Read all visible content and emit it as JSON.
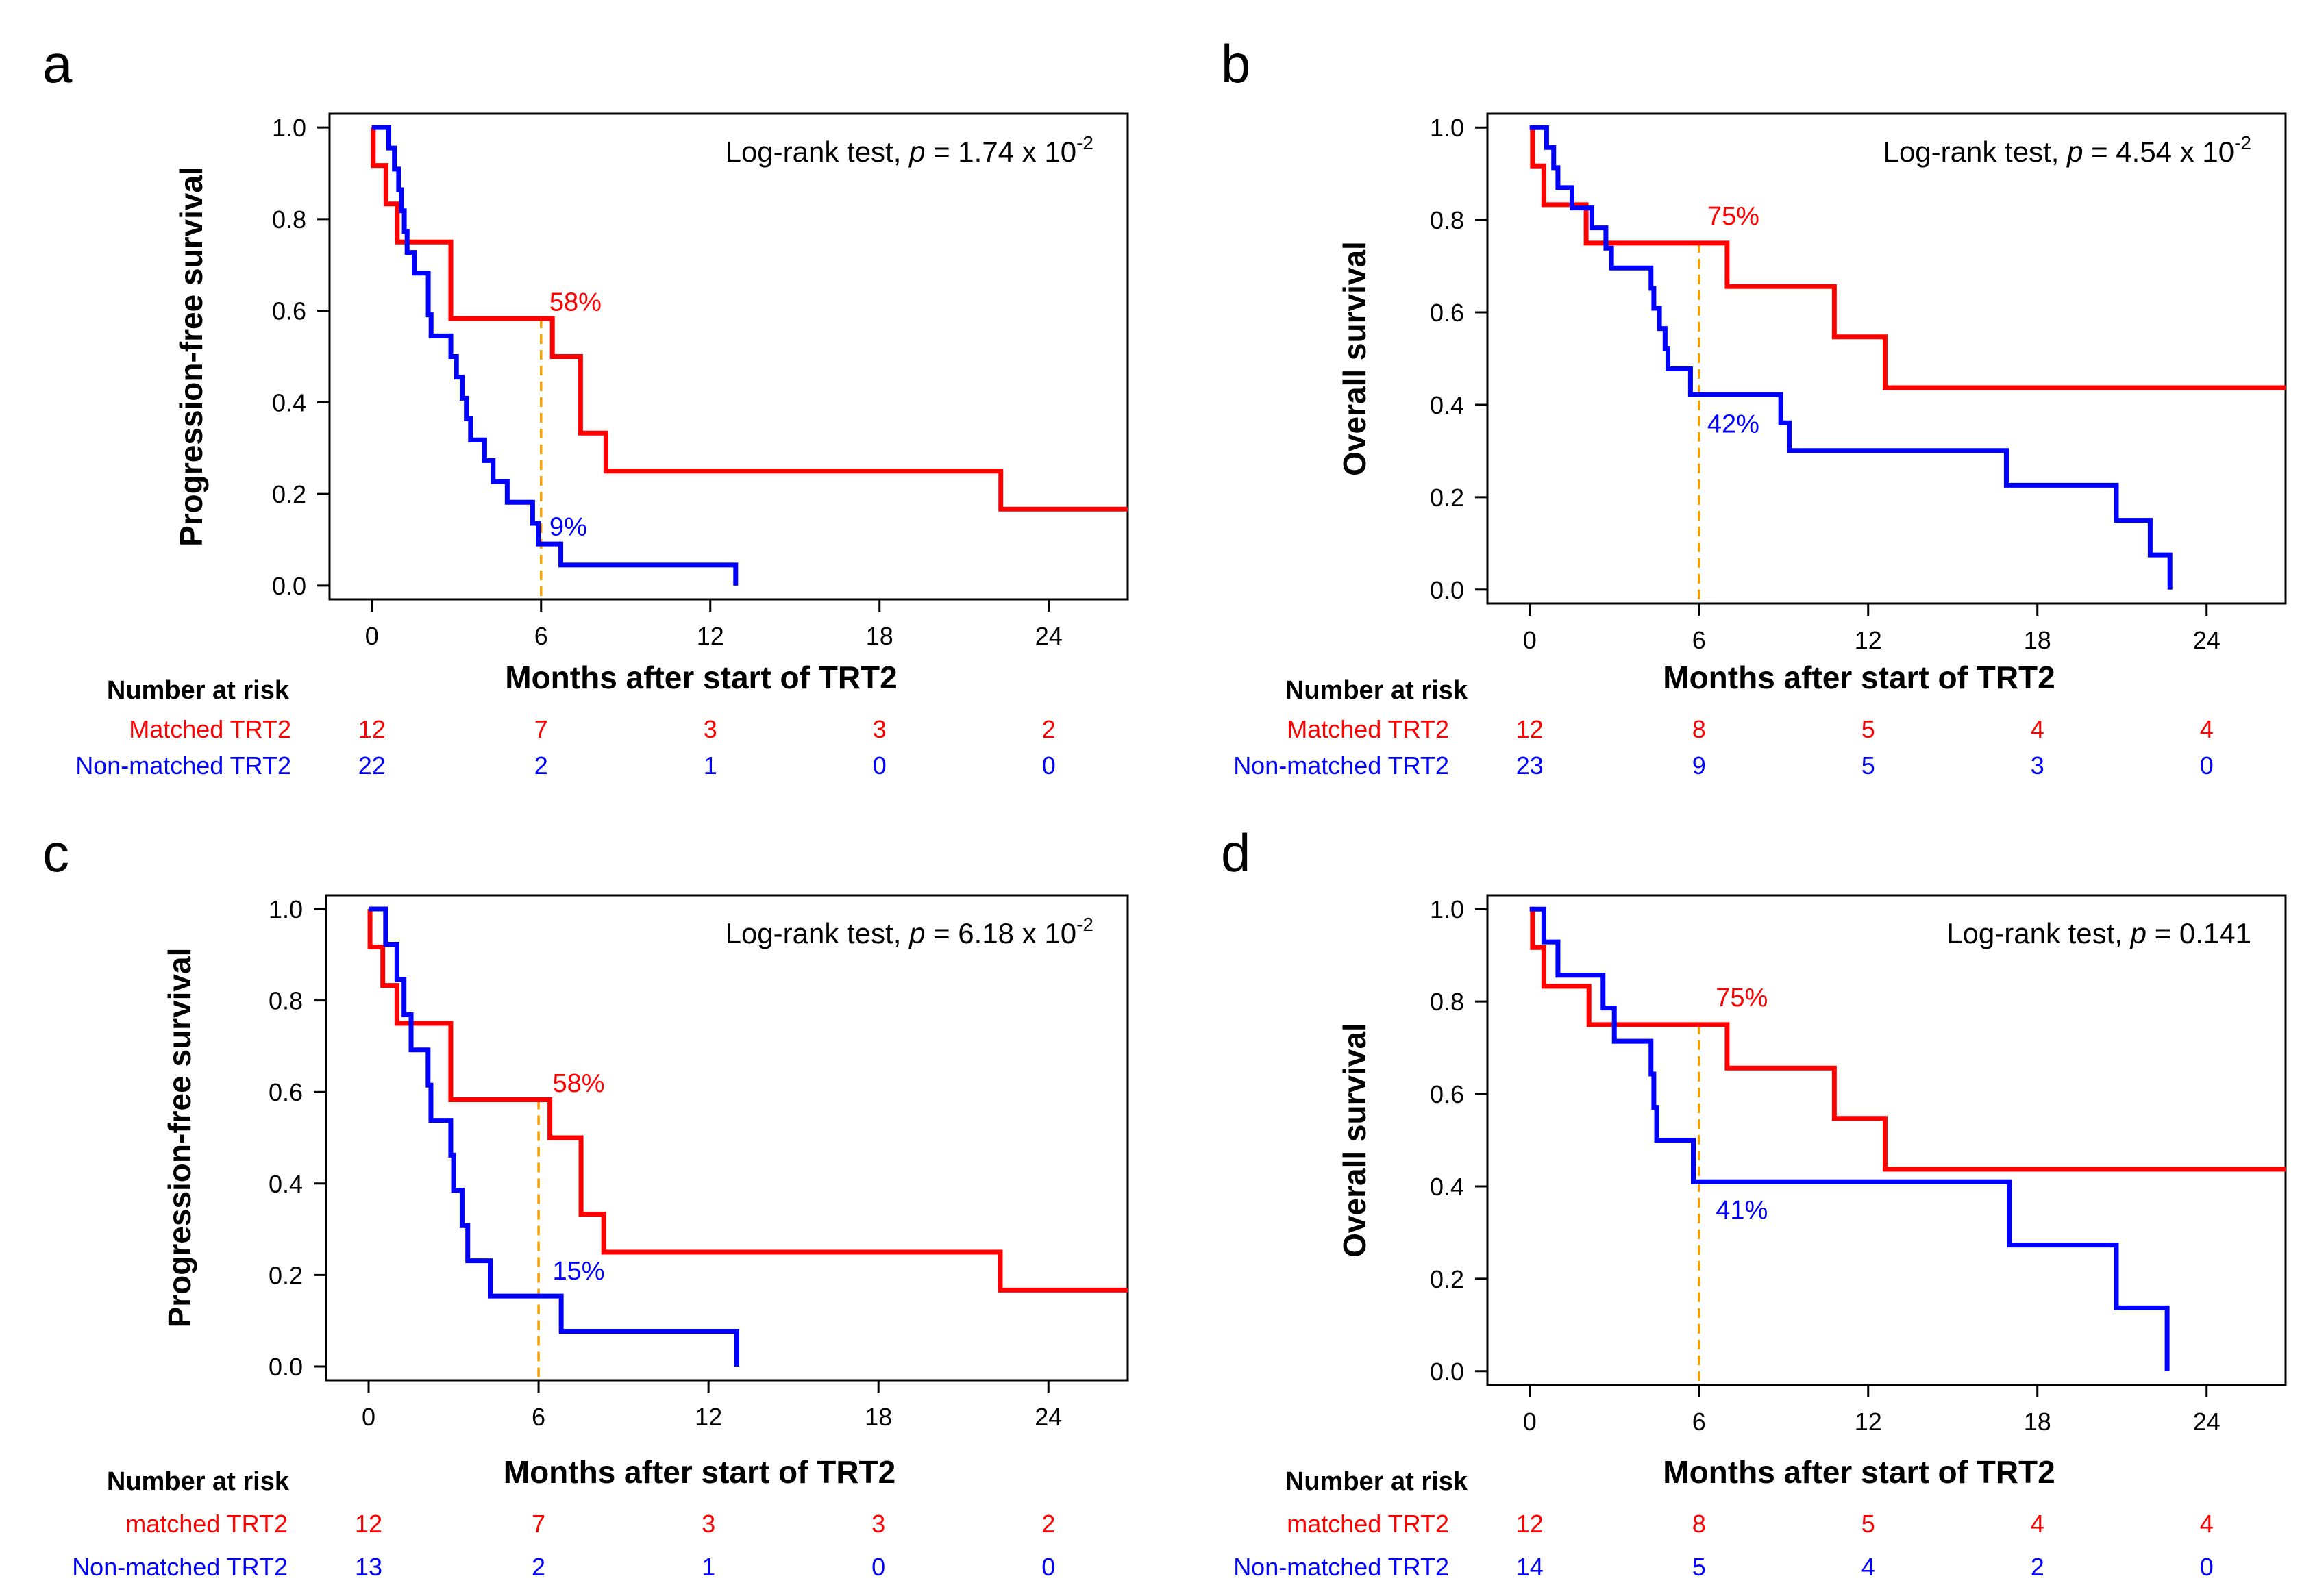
{
  "figure": {
    "colors": {
      "matched": "#ff0000",
      "nonmatched": "#0000ff",
      "marker": "#f5a000",
      "axis": "#000000"
    },
    "tick_x": [
      "0",
      "6",
      "12",
      "18",
      "24"
    ],
    "tick_y": [
      "0.0",
      "0.2",
      "0.4",
      "0.6",
      "0.8",
      "1.0"
    ]
  },
  "chart_data": [
    {
      "type": "line",
      "panel_label": "a",
      "ylabel": "Progression-free survival",
      "xlabel": "Months after start of TRT2",
      "xlim": [
        -1.5,
        26.8
      ],
      "ylim": [
        -0.03,
        1.03
      ],
      "test_label": "Log-rank test, ",
      "test_p_symbol": "p",
      "test_p_value": " = 1.74 x 10",
      "test_p_exp": "-2",
      "marker_x": 6,
      "risk_header": "Number at risk",
      "series": [
        {
          "name": "Matched TRT2",
          "color": "#ff0000",
          "annotation": "58%",
          "annotation_at": [
            6.1,
            0.6
          ],
          "risk": [
            "12",
            "7",
            "3",
            "3",
            "2"
          ],
          "points": [
            [
              0,
              1.0
            ],
            [
              0.05,
              0.917
            ],
            [
              0.5,
              0.833
            ],
            [
              0.9,
              0.75
            ],
            [
              2.8,
              0.583
            ],
            [
              6.4,
              0.5
            ],
            [
              7.4,
              0.333
            ],
            [
              8.3,
              0.25
            ],
            [
              22.3,
              0.167
            ],
            [
              26.8,
              0.167
            ]
          ]
        },
        {
          "name": "Non-matched TRT2",
          "color": "#0000ff",
          "annotation": "9%",
          "annotation_at": [
            6.1,
            0.11
          ],
          "risk": [
            "22",
            "2",
            "1",
            "0",
            "0"
          ],
          "points": [
            [
              0,
              1.0
            ],
            [
              0.6,
              0.955
            ],
            [
              0.8,
              0.909
            ],
            [
              0.95,
              0.864
            ],
            [
              1.05,
              0.818
            ],
            [
              1.15,
              0.773
            ],
            [
              1.25,
              0.727
            ],
            [
              1.5,
              0.682
            ],
            [
              2.0,
              0.591
            ],
            [
              2.1,
              0.545
            ],
            [
              2.8,
              0.5
            ],
            [
              3.0,
              0.455
            ],
            [
              3.2,
              0.409
            ],
            [
              3.35,
              0.364
            ],
            [
              3.5,
              0.318
            ],
            [
              4.0,
              0.273
            ],
            [
              4.3,
              0.227
            ],
            [
              4.8,
              0.182
            ],
            [
              5.7,
              0.136
            ],
            [
              5.9,
              0.091
            ],
            [
              6.7,
              0.045
            ],
            [
              12.9,
              0.045
            ],
            [
              12.9,
              0.0
            ]
          ]
        }
      ]
    },
    {
      "type": "line",
      "panel_label": "b",
      "ylabel": "Overall survival",
      "xlabel": "Months after start of TRT2",
      "xlim": [
        -1.5,
        26.8
      ],
      "ylim": [
        -0.03,
        1.03
      ],
      "test_label": "Log-rank test, ",
      "test_p_symbol": "p",
      "test_p_value": " = 4.54 x 10",
      "test_p_exp": "-2",
      "marker_x": 6,
      "risk_header": "Number at risk",
      "series": [
        {
          "name": "Matched TRT2",
          "color": "#ff0000",
          "annotation": "75%",
          "annotation_at": [
            6.1,
            0.79
          ],
          "risk": [
            "12",
            "8",
            "5",
            "4",
            "4"
          ],
          "points": [
            [
              0,
              1.0
            ],
            [
              0.1,
              0.917
            ],
            [
              0.5,
              0.833
            ],
            [
              2.0,
              0.75
            ],
            [
              7.0,
              0.656
            ],
            [
              10.8,
              0.547
            ],
            [
              12.6,
              0.437
            ],
            [
              26.8,
              0.437
            ]
          ]
        },
        {
          "name": "Non-matched TRT2",
          "color": "#0000ff",
          "annotation": "42%",
          "annotation_at": [
            6.1,
            0.34
          ],
          "risk": [
            "23",
            "9",
            "5",
            "3",
            "0"
          ],
          "points": [
            [
              0,
              1.0
            ],
            [
              0.6,
              0.957
            ],
            [
              0.85,
              0.913
            ],
            [
              1.0,
              0.87
            ],
            [
              1.5,
              0.826
            ],
            [
              2.2,
              0.783
            ],
            [
              2.7,
              0.739
            ],
            [
              2.9,
              0.696
            ],
            [
              4.3,
              0.652
            ],
            [
              4.4,
              0.609
            ],
            [
              4.6,
              0.565
            ],
            [
              4.8,
              0.522
            ],
            [
              4.9,
              0.478
            ],
            [
              5.7,
              0.422
            ],
            [
              8.9,
              0.361
            ],
            [
              9.2,
              0.301
            ],
            [
              16.9,
              0.226
            ],
            [
              20.8,
              0.15
            ],
            [
              22.0,
              0.075
            ],
            [
              22.7,
              0.075
            ],
            [
              22.7,
              0.0
            ]
          ]
        }
      ]
    },
    {
      "type": "line",
      "panel_label": "c",
      "ylabel": "Progression-free survival",
      "xlabel": "Months after start of TRT2",
      "xlim": [
        -1.5,
        26.8
      ],
      "ylim": [
        -0.03,
        1.03
      ],
      "test_label": "Log-rank test, ",
      "test_p_symbol": "p",
      "test_p_value": " = 6.18 x 10",
      "test_p_exp": "-2",
      "marker_x": 6,
      "risk_header": "Number at risk",
      "series": [
        {
          "name": "matched TRT2",
          "color": "#ff0000",
          "annotation": "58%",
          "annotation_at": [
            6.3,
            0.6
          ],
          "risk": [
            "12",
            "7",
            "3",
            "3",
            "2"
          ],
          "points": [
            [
              0,
              1.0
            ],
            [
              0.05,
              0.917
            ],
            [
              0.5,
              0.833
            ],
            [
              1.0,
              0.75
            ],
            [
              2.9,
              0.583
            ],
            [
              6.4,
              0.5
            ],
            [
              7.5,
              0.333
            ],
            [
              8.3,
              0.25
            ],
            [
              22.3,
              0.167
            ],
            [
              26.8,
              0.167
            ]
          ]
        },
        {
          "name": "Non-matched TRT2",
          "color": "#0000ff",
          "annotation": "15%",
          "annotation_at": [
            6.3,
            0.19
          ],
          "risk": [
            "13",
            "2",
            "1",
            "0",
            "0"
          ],
          "points": [
            [
              0,
              1.0
            ],
            [
              0.6,
              0.923
            ],
            [
              1.0,
              0.846
            ],
            [
              1.25,
              0.769
            ],
            [
              1.5,
              0.692
            ],
            [
              2.1,
              0.615
            ],
            [
              2.2,
              0.538
            ],
            [
              2.9,
              0.462
            ],
            [
              3.0,
              0.385
            ],
            [
              3.3,
              0.308
            ],
            [
              3.5,
              0.231
            ],
            [
              4.3,
              0.154
            ],
            [
              6.8,
              0.077
            ],
            [
              13.0,
              0.077
            ],
            [
              13.0,
              0.0
            ]
          ]
        }
      ]
    },
    {
      "type": "line",
      "panel_label": "d",
      "ylabel": "Overall survival",
      "xlabel": "Months after start of TRT2",
      "xlim": [
        -1.5,
        26.8
      ],
      "ylim": [
        -0.03,
        1.03
      ],
      "test_label": "Log-rank test, ",
      "test_p_symbol": "p",
      "test_p_value": " = 0.141",
      "test_p_exp": "",
      "marker_x": 6,
      "risk_header": "Number at risk",
      "series": [
        {
          "name": "matched TRT2",
          "color": "#ff0000",
          "annotation": "75%",
          "annotation_at": [
            6.4,
            0.79
          ],
          "risk": [
            "12",
            "8",
            "5",
            "4",
            "4"
          ],
          "points": [
            [
              0,
              1.0
            ],
            [
              0.1,
              0.917
            ],
            [
              0.5,
              0.833
            ],
            [
              2.1,
              0.75
            ],
            [
              7.0,
              0.656
            ],
            [
              10.8,
              0.547
            ],
            [
              12.6,
              0.437
            ],
            [
              26.8,
              0.437
            ]
          ]
        },
        {
          "name": "Non-matched TRT2",
          "color": "#0000ff",
          "annotation": "41%",
          "annotation_at": [
            6.4,
            0.33
          ],
          "risk": [
            "14",
            "5",
            "4",
            "2",
            "0"
          ],
          "points": [
            [
              0,
              1.0
            ],
            [
              0.5,
              0.929
            ],
            [
              1.0,
              0.857
            ],
            [
              2.6,
              0.786
            ],
            [
              3.0,
              0.714
            ],
            [
              4.3,
              0.643
            ],
            [
              4.4,
              0.571
            ],
            [
              4.5,
              0.5
            ],
            [
              5.8,
              0.41
            ],
            [
              17.0,
              0.273
            ],
            [
              20.8,
              0.137
            ],
            [
              22.6,
              0.137
            ],
            [
              22.6,
              0.0
            ]
          ]
        }
      ]
    }
  ]
}
